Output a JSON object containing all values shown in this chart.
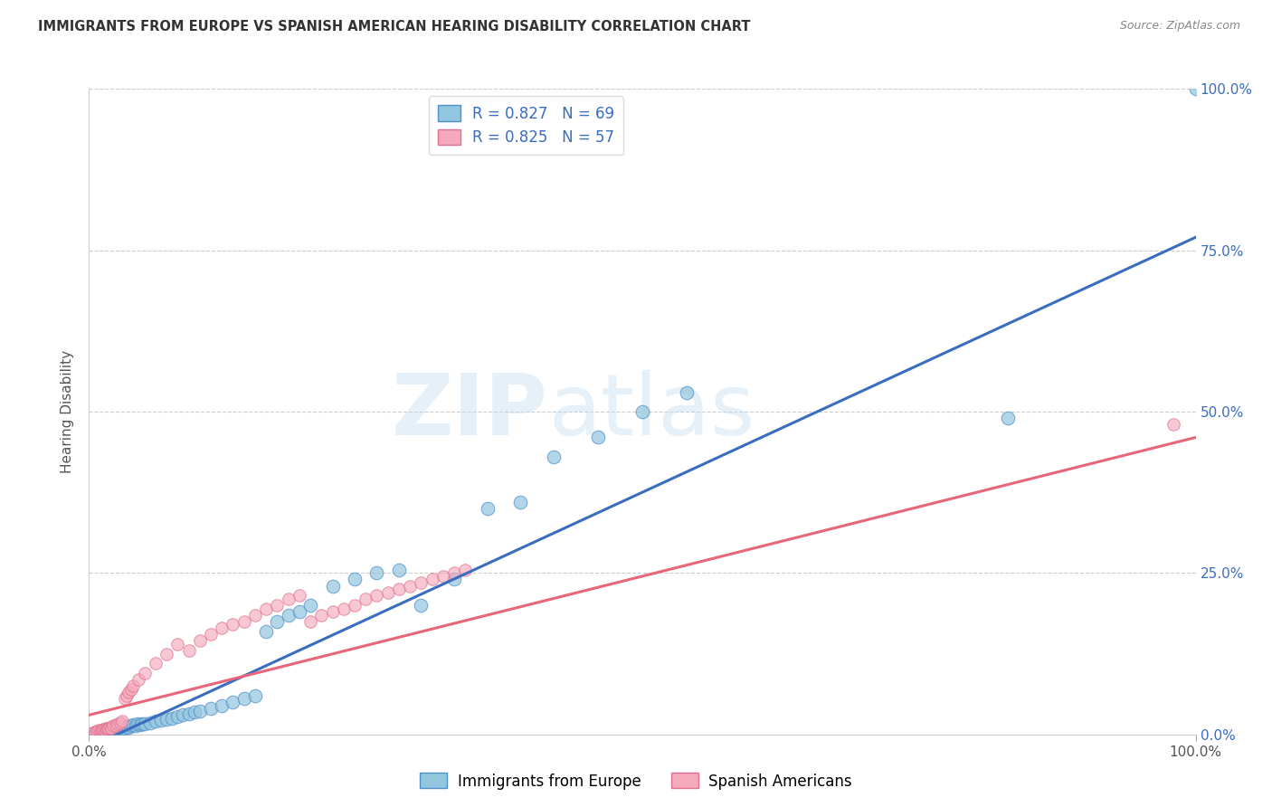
{
  "title": "IMMIGRANTS FROM EUROPE VS SPANISH AMERICAN HEARING DISABILITY CORRELATION CHART",
  "source": "Source: ZipAtlas.com",
  "ylabel": "Hearing Disability",
  "xlim": [
    0,
    1.0
  ],
  "ylim": [
    0,
    1.0
  ],
  "ytick_positions": [
    0.0,
    0.25,
    0.5,
    0.75,
    1.0
  ],
  "ytick_labels": [
    "0.0%",
    "25.0%",
    "50.0%",
    "75.0%",
    "100.0%"
  ],
  "blue_R": "0.827",
  "blue_N": "69",
  "pink_R": "0.825",
  "pink_N": "57",
  "blue_color": "#92c5de",
  "pink_color": "#f4a9bc",
  "blue_line_color": "#3a6dbf",
  "pink_line_color": "#e8657a",
  "blue_marker_edge": "#5090c8",
  "pink_marker_edge": "#e07090",
  "legend_label_blue": "Immigrants from Europe",
  "legend_label_pink": "Spanish Americans",
  "watermark_zip": "ZIP",
  "watermark_atlas": "atlas",
  "blue_line_x0": 0.0,
  "blue_line_y0": -0.02,
  "blue_line_x1": 1.0,
  "blue_line_y1": 0.77,
  "pink_line_x0": 0.0,
  "pink_line_y0": 0.03,
  "pink_line_x1": 1.0,
  "pink_line_y1": 0.46,
  "blue_scatter_x": [
    0.005,
    0.007,
    0.008,
    0.009,
    0.01,
    0.011,
    0.012,
    0.013,
    0.014,
    0.015,
    0.016,
    0.017,
    0.018,
    0.019,
    0.02,
    0.021,
    0.022,
    0.023,
    0.024,
    0.025,
    0.026,
    0.027,
    0.028,
    0.029,
    0.03,
    0.032,
    0.034,
    0.036,
    0.038,
    0.04,
    0.042,
    0.044,
    0.046,
    0.048,
    0.05,
    0.055,
    0.06,
    0.065,
    0.07,
    0.075,
    0.08,
    0.085,
    0.09,
    0.095,
    0.1,
    0.11,
    0.12,
    0.13,
    0.14,
    0.15,
    0.16,
    0.17,
    0.18,
    0.19,
    0.2,
    0.22,
    0.24,
    0.26,
    0.28,
    0.3,
    0.33,
    0.36,
    0.39,
    0.42,
    0.46,
    0.5,
    0.54,
    0.83,
    1.0
  ],
  "blue_scatter_y": [
    0.002,
    0.003,
    0.002,
    0.004,
    0.003,
    0.005,
    0.004,
    0.003,
    0.005,
    0.006,
    0.004,
    0.006,
    0.005,
    0.007,
    0.006,
    0.005,
    0.007,
    0.006,
    0.008,
    0.007,
    0.006,
    0.008,
    0.007,
    0.009,
    0.008,
    0.01,
    0.012,
    0.011,
    0.013,
    0.015,
    0.014,
    0.016,
    0.015,
    0.017,
    0.016,
    0.018,
    0.02,
    0.022,
    0.024,
    0.025,
    0.027,
    0.03,
    0.032,
    0.034,
    0.036,
    0.04,
    0.045,
    0.05,
    0.055,
    0.06,
    0.16,
    0.175,
    0.185,
    0.19,
    0.2,
    0.23,
    0.24,
    0.25,
    0.255,
    0.2,
    0.24,
    0.35,
    0.36,
    0.43,
    0.46,
    0.5,
    0.53,
    0.49,
    1.0
  ],
  "pink_scatter_x": [
    0.003,
    0.005,
    0.007,
    0.009,
    0.01,
    0.011,
    0.012,
    0.013,
    0.014,
    0.015,
    0.016,
    0.017,
    0.018,
    0.019,
    0.02,
    0.022,
    0.024,
    0.026,
    0.028,
    0.03,
    0.032,
    0.034,
    0.036,
    0.038,
    0.04,
    0.045,
    0.05,
    0.06,
    0.07,
    0.08,
    0.09,
    0.1,
    0.11,
    0.12,
    0.13,
    0.14,
    0.15,
    0.16,
    0.17,
    0.18,
    0.19,
    0.2,
    0.21,
    0.22,
    0.23,
    0.24,
    0.25,
    0.26,
    0.27,
    0.28,
    0.29,
    0.3,
    0.31,
    0.32,
    0.33,
    0.34,
    0.98
  ],
  "pink_scatter_y": [
    0.003,
    0.004,
    0.005,
    0.006,
    0.005,
    0.007,
    0.006,
    0.008,
    0.007,
    0.009,
    0.008,
    0.01,
    0.009,
    0.011,
    0.01,
    0.013,
    0.014,
    0.016,
    0.018,
    0.02,
    0.055,
    0.06,
    0.065,
    0.07,
    0.075,
    0.085,
    0.095,
    0.11,
    0.125,
    0.14,
    0.13,
    0.145,
    0.155,
    0.165,
    0.17,
    0.175,
    0.185,
    0.195,
    0.2,
    0.21,
    0.215,
    0.175,
    0.185,
    0.19,
    0.195,
    0.2,
    0.21,
    0.215,
    0.22,
    0.225,
    0.23,
    0.235,
    0.24,
    0.245,
    0.25,
    0.255,
    0.48
  ]
}
